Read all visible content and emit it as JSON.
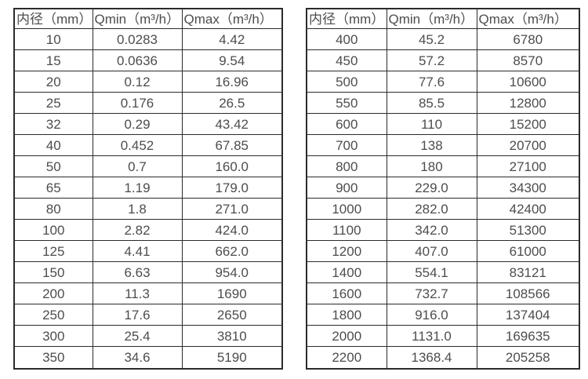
{
  "colors": {
    "background": "#ffffff",
    "text": "#4d4d4d",
    "border": "#2b2b2b"
  },
  "chart_data": [
    {
      "type": "table",
      "columns": [
        "内径（mm）",
        "Qmin（m³/h）",
        "Qmax（m³/h）"
      ],
      "rows": [
        [
          "10",
          "0.0283",
          "4.42"
        ],
        [
          "15",
          "0.0636",
          "9.54"
        ],
        [
          "20",
          "0.12",
          "16.96"
        ],
        [
          "25",
          "0.176",
          "26.5"
        ],
        [
          "32",
          "0.29",
          "43.42"
        ],
        [
          "40",
          "0.452",
          "67.85"
        ],
        [
          "50",
          "0.7",
          "160.0"
        ],
        [
          "65",
          "1.19",
          "179.0"
        ],
        [
          "80",
          "1.8",
          "271.0"
        ],
        [
          "100",
          "2.82",
          "424.0"
        ],
        [
          "125",
          "4.41",
          "662.0"
        ],
        [
          "150",
          "6.63",
          "954.0"
        ],
        [
          "200",
          "11.3",
          "1690"
        ],
        [
          "250",
          "17.6",
          "2650"
        ],
        [
          "300",
          "25.4",
          "3810"
        ],
        [
          "350",
          "34.6",
          "5190"
        ]
      ]
    },
    {
      "type": "table",
      "columns": [
        "内径（mm）",
        "Qmin（m³/h）",
        "Qmax（m³/h）"
      ],
      "rows": [
        [
          "400",
          "45.2",
          "6780"
        ],
        [
          "450",
          "57.2",
          "8570"
        ],
        [
          "500",
          "77.6",
          "10600"
        ],
        [
          "550",
          "85.5",
          "12800"
        ],
        [
          "600",
          "110",
          "15200"
        ],
        [
          "700",
          "138",
          "20700"
        ],
        [
          "800",
          "180",
          "27100"
        ],
        [
          "900",
          "229.0",
          "34300"
        ],
        [
          "1000",
          "282.0",
          "42400"
        ],
        [
          "1100",
          "342.0",
          "51300"
        ],
        [
          "1200",
          "407.0",
          "61000"
        ],
        [
          "1400",
          "554.1",
          "83121"
        ],
        [
          "1600",
          "732.7",
          "108566"
        ],
        [
          "1800",
          "916.0",
          "137404"
        ],
        [
          "2000",
          "1131.0",
          "169635"
        ],
        [
          "2200",
          "1368.4",
          "205258"
        ]
      ]
    }
  ]
}
